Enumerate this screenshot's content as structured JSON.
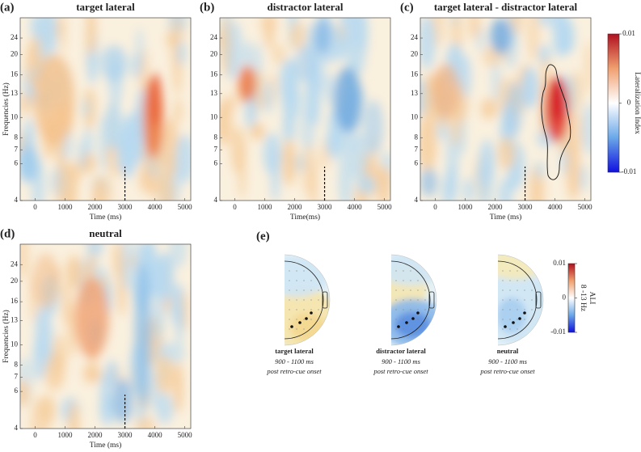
{
  "chart_data": [
    {
      "type": "heatmap",
      "label": "(a)",
      "title": "target lateral",
      "xlabel": "Time (ms)",
      "ylabel": "Frequencies (Hz)",
      "xlim": [
        -500,
        5200
      ],
      "xticks": [
        0,
        1000,
        2000,
        3000,
        4000,
        5000
      ],
      "ylim": [
        4,
        30
      ],
      "yscale": "log",
      "yticks": [
        4,
        6,
        7,
        8,
        10,
        13,
        16,
        20,
        24
      ],
      "marker_x": 3000
    },
    {
      "type": "heatmap",
      "label": "(b)",
      "title": "distractor lateral",
      "xlabel": "Time(ms)",
      "xlim": [
        -500,
        5200
      ],
      "xticks": [
        0,
        1000,
        2000,
        3000,
        4000,
        5000
      ],
      "ylim": [
        4,
        30
      ],
      "yscale": "log",
      "yticks": [
        4,
        6,
        7,
        8,
        10,
        13,
        16,
        20,
        24
      ],
      "marker_x": 3000
    },
    {
      "type": "heatmap",
      "label": "(c)",
      "title": "target lateral - distractor lateral",
      "xlabel": "Time (ms)",
      "xlim": [
        -500,
        5200
      ],
      "xticks": [
        0,
        1000,
        2000,
        3000,
        4000,
        5000
      ],
      "ylim": [
        4,
        30
      ],
      "yscale": "log",
      "yticks": [
        4,
        6,
        7,
        8,
        10,
        13,
        16,
        20,
        24
      ],
      "marker_x": 3000,
      "colorbar": {
        "clim": [
          -0.01,
          0.01
        ],
        "cticks": [
          -0.01,
          0,
          0.01
        ],
        "label": "Lateralization Index",
        "colormap": [
          "#1010e0",
          "#6aa8e8",
          "#ffffff",
          "#f0a070",
          "#b01020"
        ]
      }
    },
    {
      "type": "heatmap",
      "label": "(d)",
      "title": "neutral",
      "xlabel": "Time (ms)",
      "ylabel": "Frequencies (Hz)",
      "xlim": [
        -500,
        5200
      ],
      "xticks": [
        0,
        1000,
        2000,
        3000,
        4000,
        5000
      ],
      "ylim": [
        4,
        30
      ],
      "yscale": "log",
      "yticks": [
        4,
        6,
        7,
        8,
        10,
        13,
        16,
        20,
        24
      ],
      "marker_x": 3000
    },
    {
      "type": "topomap",
      "label": "(e)",
      "maps": [
        {
          "title": "target lateral",
          "window": "900 - 1100 ms",
          "note": "post retro-cue onset"
        },
        {
          "title": "distractor lateral",
          "window": "900 - 1100 ms",
          "note": "post retro-cue onset"
        },
        {
          "title": "neutral",
          "window": "900 - 1100 ms",
          "note": "post retro-cue onset"
        }
      ],
      "colorbar": {
        "clim": [
          -0.01,
          0.01
        ],
        "cticks": [
          -0.01,
          0,
          0.01
        ],
        "label": [
          "ALI",
          "8 -13 Hz"
        ],
        "colormap": [
          "#1010e0",
          "#6aa8e8",
          "#ffffff",
          "#f0a070",
          "#b01020"
        ]
      }
    }
  ]
}
